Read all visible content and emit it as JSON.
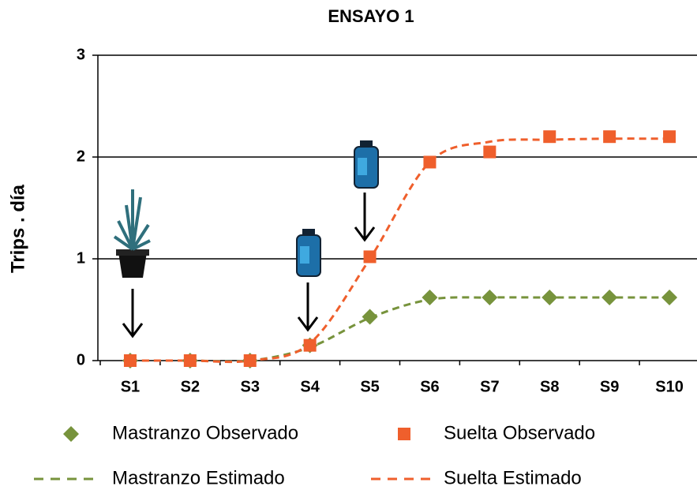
{
  "chart_data": {
    "type": "line",
    "title": "ENSAYO 1",
    "y_label": "Trips . día",
    "categories": [
      "S1",
      "S2",
      "S3",
      "S4",
      "S5",
      "S6",
      "S7",
      "S8",
      "S9",
      "S10"
    ],
    "ylim": [
      0,
      3
    ],
    "yticks": [
      0,
      1,
      2,
      3
    ],
    "grid": true,
    "series": [
      {
        "name": "Mastranzo Observado",
        "color": "#77933c",
        "style": "marker",
        "marker": "diamond",
        "values": [
          0,
          0,
          0,
          0.15,
          0.43,
          0.62,
          0.62,
          0.62,
          0.62,
          0.62
        ]
      },
      {
        "name": "Suelta Observado",
        "color": "#ef5f2c",
        "style": "marker",
        "marker": "square",
        "values": [
          0,
          0,
          0,
          0.15,
          1.02,
          1.95,
          2.05,
          2.2,
          2.2,
          2.2
        ]
      },
      {
        "name": "Mastranzo Estimado",
        "color": "#77933c",
        "style": "dashed",
        "values": [
          0,
          0,
          0,
          0.13,
          0.42,
          0.6,
          0.62,
          0.62,
          0.62,
          0.62
        ]
      },
      {
        "name": "Suelta Estimado",
        "color": "#ef5f2c",
        "style": "dashed",
        "values": [
          0,
          0,
          0,
          0.17,
          1.0,
          1.95,
          2.15,
          2.17,
          2.18,
          2.18
        ]
      }
    ]
  }
}
